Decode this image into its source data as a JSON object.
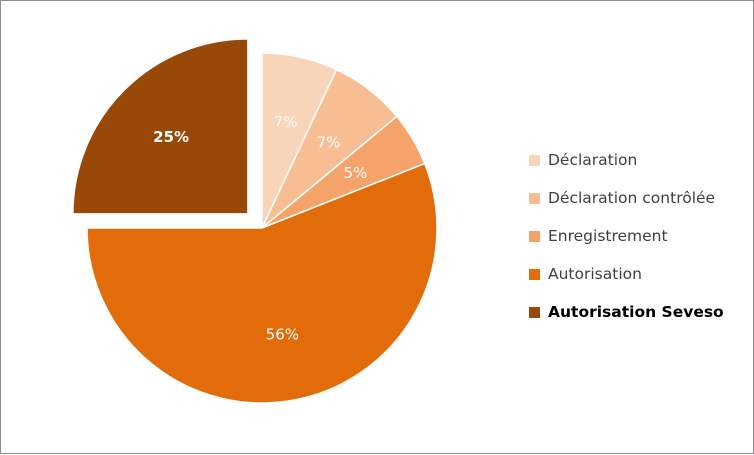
{
  "chart_data": {
    "type": "pie",
    "slices": [
      {
        "name": "Déclaration",
        "value": 7,
        "label": "7%",
        "color": "#F8D4B8"
      },
      {
        "name": "Déclaration contrôlée",
        "value": 7,
        "label": "7%",
        "color": "#F7BE94"
      },
      {
        "name": "Enregistrement",
        "value": 5,
        "label": "5%",
        "color": "#F4A46A"
      },
      {
        "name": "Autorisation",
        "value": 56,
        "label": "56%",
        "color": "#E36C0A"
      },
      {
        "name": "Autorisation Seveso",
        "value": 25,
        "label": "25%",
        "color": "#984807",
        "exploded": true,
        "bold": true
      }
    ],
    "legend_position": "right",
    "title": ""
  }
}
